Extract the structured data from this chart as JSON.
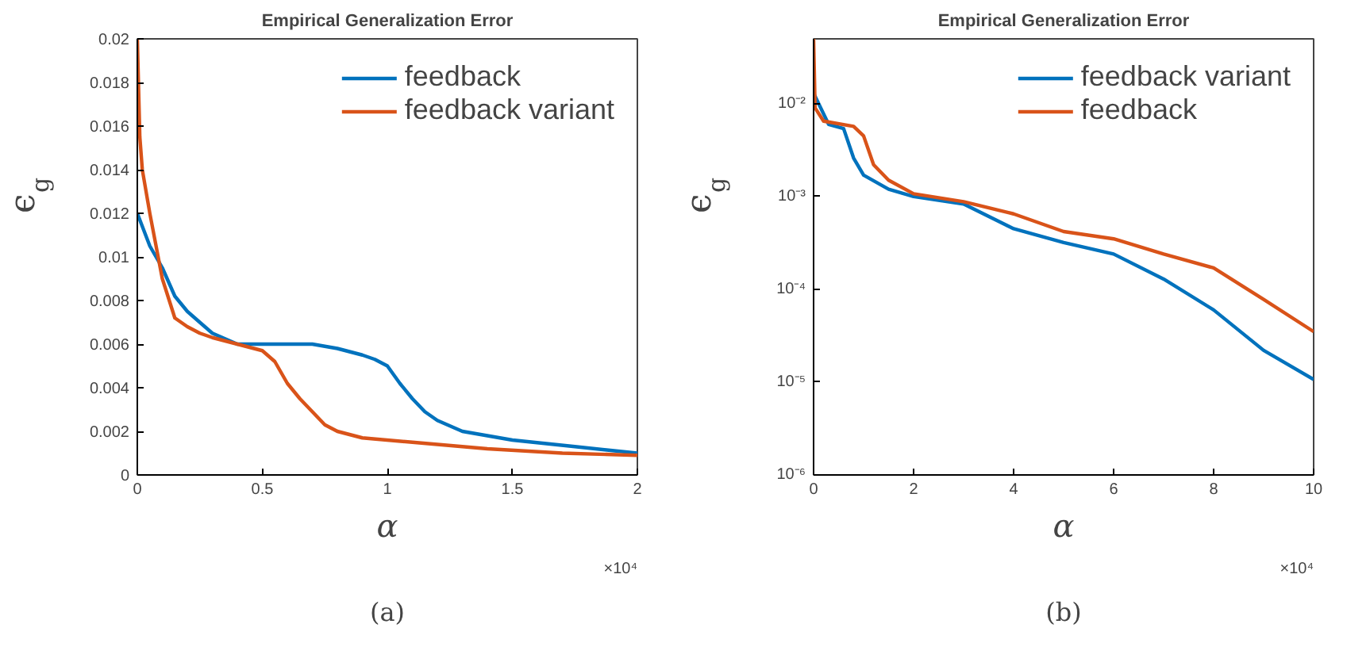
{
  "chart_data": [
    {
      "type": "line",
      "title": "Empirical Generalization Error",
      "xlabel": "α",
      "ylabel": "ϵ$_{g}$",
      "annotations": [
        "×10⁴",
        "(a)"
      ],
      "xlim": [
        0,
        2
      ],
      "ylim": [
        0,
        0.02
      ],
      "xticks": [
        0,
        0.5,
        1,
        1.5,
        2
      ],
      "yticks": [
        0,
        0.002,
        0.004,
        0.006,
        0.008,
        0.01,
        0.012,
        0.014,
        0.016,
        0.018,
        0.02
      ],
      "grid": false,
      "legend": "top right",
      "series": [
        {
          "name": "feedback",
          "color": "#0072bd",
          "x": [
            0,
            0.05,
            0.1,
            0.15,
            0.2,
            0.3,
            0.4,
            0.5,
            0.6,
            0.7,
            0.8,
            0.9,
            0.95,
            1.0,
            1.05,
            1.1,
            1.15,
            1.2,
            1.3,
            1.4,
            1.5,
            1.75,
            2.0
          ],
          "values": [
            0.012,
            0.0105,
            0.0095,
            0.0082,
            0.0075,
            0.0065,
            0.006,
            0.006,
            0.006,
            0.006,
            0.0058,
            0.0055,
            0.0053,
            0.005,
            0.0042,
            0.0035,
            0.0029,
            0.0025,
            0.002,
            0.0018,
            0.0016,
            0.0013,
            0.001
          ]
        },
        {
          "name": "feedback variant",
          "color": "#d95319",
          "x": [
            0,
            0.01,
            0.02,
            0.05,
            0.1,
            0.15,
            0.2,
            0.25,
            0.3,
            0.4,
            0.5,
            0.55,
            0.6,
            0.65,
            0.7,
            0.75,
            0.8,
            0.9,
            1.1,
            1.4,
            1.7,
            2.0
          ],
          "values": [
            0.02,
            0.0155,
            0.014,
            0.012,
            0.009,
            0.0072,
            0.0068,
            0.0065,
            0.0063,
            0.006,
            0.0057,
            0.0052,
            0.0042,
            0.0035,
            0.0029,
            0.0023,
            0.002,
            0.0017,
            0.0015,
            0.0012,
            0.001,
            0.0009
          ]
        }
      ]
    },
    {
      "type": "line",
      "title": "Empirical Generalization Error",
      "xlabel": "α",
      "ylabel": "ϵ$_{g}$",
      "annotations": [
        "×10⁴",
        "(b)"
      ],
      "log": "y",
      "xlim": [
        0,
        10
      ],
      "ylim": [
        1e-06,
        0.05
      ],
      "xticks": [
        0,
        2,
        4,
        6,
        8,
        10
      ],
      "yticks": [
        {
          "value": 1e-06,
          "label": "10⁻⁶"
        },
        {
          "value": 1e-05,
          "label": "10⁻⁵"
        },
        {
          "value": 0.0001,
          "label": "10⁻⁴"
        },
        {
          "value": 0.001,
          "label": "10⁻³"
        },
        {
          "value": 0.01,
          "label": "10⁻²"
        }
      ],
      "grid": false,
      "legend": "top right",
      "series": [
        {
          "name": "feedback variant",
          "color": "#0072bd",
          "x": [
            0,
            0.3,
            0.6,
            0.8,
            1.0,
            1.5,
            2,
            3,
            4,
            5,
            6,
            7,
            8,
            9,
            10
          ],
          "values": [
            0.013,
            0.006,
            0.0054,
            0.0026,
            0.0017,
            0.0012,
            0.001,
            0.00083,
            0.00045,
            0.00032,
            0.00024,
            0.000129,
            6e-05,
            2.2e-05,
            1.07e-05
          ]
        },
        {
          "name": "feedback",
          "color": "#d95319",
          "x": [
            0,
            0.03,
            0.2,
            0.8,
            1.0,
            1.2,
            1.5,
            2,
            3,
            4,
            5,
            6,
            7,
            8,
            9,
            10
          ],
          "values": [
            0.05,
            0.009,
            0.0065,
            0.0057,
            0.0045,
            0.0022,
            0.0015,
            0.00107,
            0.00088,
            0.00065,
            0.00042,
            0.00035,
            0.00024,
            0.00017,
            7.8e-05,
            3.5e-05
          ]
        }
      ]
    }
  ]
}
